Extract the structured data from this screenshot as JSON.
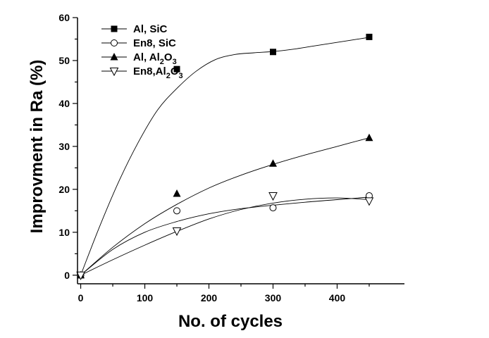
{
  "chart_data": {
    "type": "scatter",
    "xlabel": "No. of cycles",
    "ylabel": "Improvment in Ra (%)",
    "xlim": [
      -5,
      505
    ],
    "ylim": [
      -2,
      60
    ],
    "xticks": [
      0,
      100,
      200,
      300,
      400
    ],
    "yticks": [
      0,
      10,
      20,
      30,
      40,
      50,
      60
    ],
    "grid": false,
    "legend_position": "top-left",
    "series": [
      {
        "name": "Al, SiC",
        "name_main": "Al, SiC",
        "marker": "filled-square",
        "x": [
          0,
          150,
          300,
          450
        ],
        "y": [
          0,
          48,
          52,
          55.5
        ],
        "fit": [
          [
            0,
            0
          ],
          [
            30,
            11.5
          ],
          [
            60,
            22
          ],
          [
            90,
            31
          ],
          [
            120,
            38.5
          ],
          [
            150,
            43.5
          ],
          [
            180,
            47.5
          ],
          [
            210,
            50.2
          ],
          [
            240,
            51.4
          ],
          [
            270,
            51.8
          ],
          [
            300,
            52.1
          ],
          [
            330,
            52.6
          ],
          [
            360,
            53.3
          ],
          [
            390,
            54
          ],
          [
            420,
            54.7
          ],
          [
            450,
            55.4
          ]
        ]
      },
      {
        "name": "En8, SiC",
        "name_main": "En8, SiC",
        "marker": "open-circle",
        "x": [
          0,
          150,
          300,
          450
        ],
        "y": [
          0,
          15,
          15.7,
          18.5
        ],
        "fit": [
          [
            0,
            0
          ],
          [
            50,
            6
          ],
          [
            100,
            10
          ],
          [
            150,
            12.5
          ],
          [
            200,
            14.3
          ],
          [
            250,
            15.5
          ],
          [
            300,
            16.3
          ],
          [
            350,
            17
          ],
          [
            400,
            17.6
          ],
          [
            450,
            18.2
          ]
        ]
      },
      {
        "name": "Al, Al2O3",
        "name_main": "Al, Al",
        "name_sub": "2",
        "name_tail": "O",
        "name_sub2": "3",
        "marker": "filled-triangle-up",
        "x": [
          0,
          150,
          300,
          450
        ],
        "y": [
          0,
          19,
          26,
          32
        ],
        "fit": [
          [
            0,
            0
          ],
          [
            50,
            6.5
          ],
          [
            100,
            12
          ],
          [
            150,
            16.5
          ],
          [
            200,
            20.3
          ],
          [
            250,
            23.3
          ],
          [
            300,
            25.8
          ],
          [
            350,
            28
          ],
          [
            400,
            30
          ],
          [
            450,
            32
          ]
        ]
      },
      {
        "name": "En8,Al2O3",
        "name_main": "En8,Al",
        "name_sub": "2",
        "name_tail": "O",
        "name_sub2": "3",
        "marker": "open-triangle-down",
        "x": [
          0,
          150,
          300,
          450
        ],
        "y": [
          0,
          10.3,
          18.5,
          17.3
        ],
        "fit": [
          [
            0,
            0
          ],
          [
            50,
            3.6
          ],
          [
            100,
            7
          ],
          [
            150,
            10.2
          ],
          [
            200,
            13.1
          ],
          [
            250,
            15.3
          ],
          [
            300,
            16.8
          ],
          [
            350,
            17.7
          ],
          [
            400,
            18
          ],
          [
            450,
            17.6
          ]
        ]
      }
    ]
  }
}
